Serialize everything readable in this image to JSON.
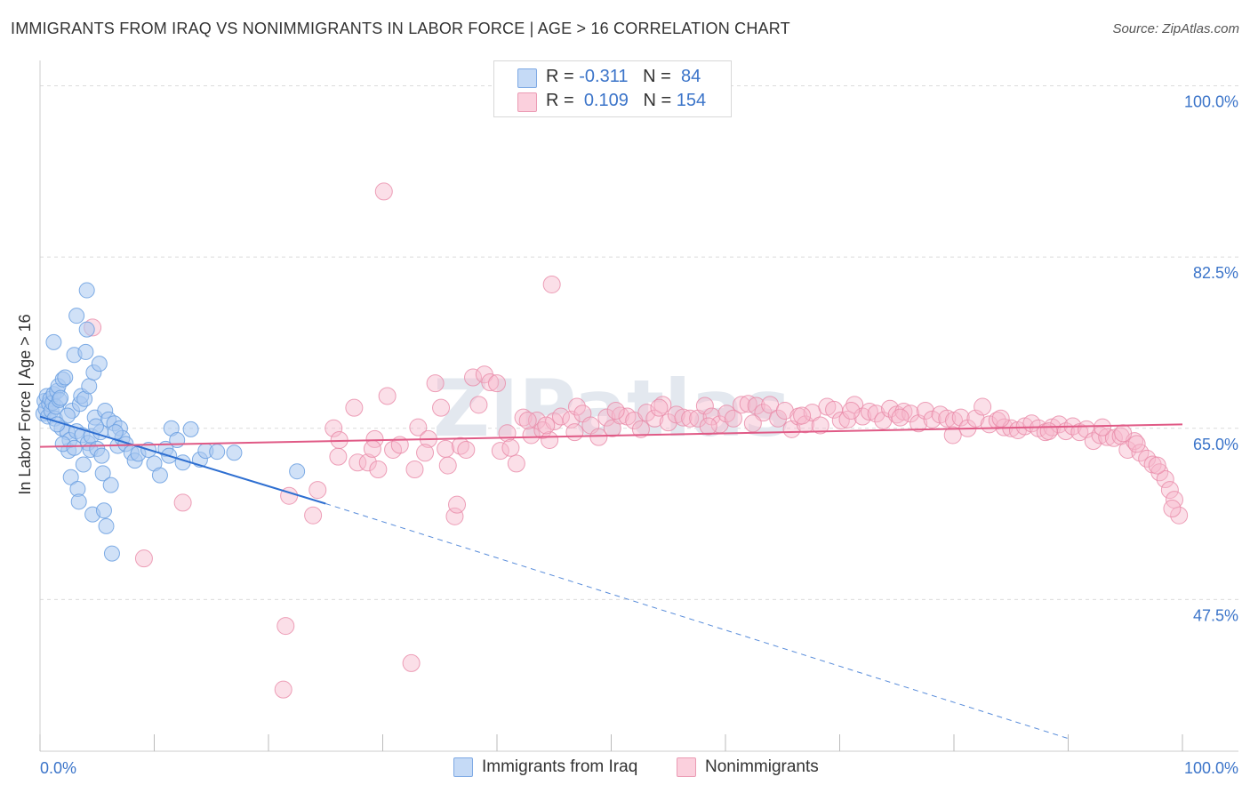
{
  "header": {
    "title": "IMMIGRANTS FROM IRAQ VS NONIMMIGRANTS IN LABOR FORCE | AGE > 16 CORRELATION CHART",
    "source": "Source: ZipAtlas.com"
  },
  "watermark": "ZIPatlas",
  "legend_stats": {
    "r_label": "R =",
    "n_label": "N =",
    "series1": {
      "r": "-0.311",
      "n": "84"
    },
    "series2": {
      "r": "0.109",
      "n": "154"
    }
  },
  "colors": {
    "blue_fill": "#a9c8f0",
    "blue_stroke": "#6a9fe0",
    "blue_line": "#2e6fd1",
    "pink_fill": "#f7b8cb",
    "pink_stroke": "#e98aa8",
    "pink_line": "#e05a86",
    "tick_label": "#3b74c9"
  },
  "chart_data": {
    "type": "scatter",
    "title": "IMMIGRANTS FROM IRAQ VS NONIMMIGRANTS IN LABOR FORCE | AGE > 16 CORRELATION CHART",
    "xlabel": "",
    "ylabel": "In Labor Force | Age > 16",
    "xlim": [
      0,
      100
    ],
    "ylim": [
      32,
      101.5
    ],
    "x_tick_labels": [
      "0.0%",
      "100.0%"
    ],
    "y_ticks": [
      47.5,
      65.0,
      82.5,
      100.0
    ],
    "y_tick_labels": [
      "47.5%",
      "65.0%",
      "82.5%",
      "100.0%"
    ],
    "grid": "horizontal dashed",
    "legend_position": "top-center and bottom",
    "series": [
      {
        "name": "Immigrants from Iraq",
        "color": "#a9c8f0",
        "trend": {
          "x": [
            0,
            25
          ],
          "y": [
            66.2,
            57.3
          ],
          "dashed_extension_to": [
            90,
            33.3
          ]
        },
        "points": [
          [
            0.3,
            66.5
          ],
          [
            0.4,
            67.8
          ],
          [
            0.5,
            67.0
          ],
          [
            0.6,
            68.3
          ],
          [
            0.7,
            66.2
          ],
          [
            0.8,
            67.5
          ],
          [
            0.9,
            68.0
          ],
          [
            1.0,
            66.8
          ],
          [
            1.1,
            67.6
          ],
          [
            1.2,
            68.5
          ],
          [
            1.3,
            66.0
          ],
          [
            1.4,
            67.2
          ],
          [
            1.5,
            68.8
          ],
          [
            1.6,
            69.3
          ],
          [
            1.7,
            67.9
          ],
          [
            1.8,
            68.1
          ],
          [
            1.2,
            73.8
          ],
          [
            1.9,
            65.0
          ],
          [
            2.0,
            70.0
          ],
          [
            2.2,
            70.2
          ],
          [
            2.4,
            64.6
          ],
          [
            2.5,
            62.7
          ],
          [
            2.6,
            63.8
          ],
          [
            2.7,
            60.0
          ],
          [
            2.8,
            66.8
          ],
          [
            3.0,
            72.5
          ],
          [
            3.2,
            64.7
          ],
          [
            3.3,
            58.8
          ],
          [
            3.4,
            57.5
          ],
          [
            3.5,
            67.5
          ],
          [
            3.6,
            68.3
          ],
          [
            3.7,
            64.3
          ],
          [
            3.8,
            61.3
          ],
          [
            3.9,
            68.0
          ],
          [
            4.0,
            72.8
          ],
          [
            4.1,
            75.1
          ],
          [
            4.2,
            63.5
          ],
          [
            4.3,
            69.3
          ],
          [
            4.4,
            62.8
          ],
          [
            4.5,
            64.2
          ],
          [
            4.6,
            56.2
          ],
          [
            4.7,
            70.7
          ],
          [
            4.8,
            66.1
          ],
          [
            5.0,
            62.9
          ],
          [
            5.2,
            71.6
          ],
          [
            5.3,
            64.6
          ],
          [
            5.4,
            62.2
          ],
          [
            5.5,
            60.4
          ],
          [
            5.6,
            56.6
          ],
          [
            5.7,
            66.8
          ],
          [
            5.8,
            55.0
          ],
          [
            6.0,
            65.9
          ],
          [
            6.2,
            59.2
          ],
          [
            6.3,
            52.2
          ],
          [
            6.5,
            65.5
          ],
          [
            6.8,
            63.2
          ],
          [
            7.0,
            65.0
          ],
          [
            7.2,
            64.0
          ],
          [
            7.5,
            63.4
          ],
          [
            8.0,
            62.5
          ],
          [
            8.3,
            61.7
          ],
          [
            8.6,
            62.4
          ],
          [
            9.5,
            62.8
          ],
          [
            10.0,
            61.4
          ],
          [
            10.5,
            60.2
          ],
          [
            11.0,
            62.9
          ],
          [
            11.3,
            62.2
          ],
          [
            11.5,
            65.0
          ],
          [
            12.0,
            63.8
          ],
          [
            12.5,
            61.5
          ],
          [
            13.2,
            64.9
          ],
          [
            14.0,
            61.8
          ],
          [
            14.5,
            62.7
          ],
          [
            15.5,
            62.6
          ],
          [
            17.0,
            62.5
          ],
          [
            22.5,
            60.6
          ],
          [
            4.1,
            79.1
          ],
          [
            3.2,
            76.5
          ],
          [
            2.4,
            66.3
          ],
          [
            1.5,
            65.4
          ],
          [
            2.0,
            63.4
          ],
          [
            3.0,
            63.0
          ],
          [
            4.9,
            65.2
          ],
          [
            6.6,
            64.6
          ]
        ]
      },
      {
        "name": "Nonimmigrants",
        "color": "#f7b8cb",
        "trend": {
          "x": [
            0,
            100
          ],
          "y": [
            63.1,
            65.4
          ]
        },
        "points": [
          [
            4.6,
            75.3
          ],
          [
            9.1,
            51.7
          ],
          [
            12.5,
            57.4
          ],
          [
            21.5,
            44.8
          ],
          [
            21.3,
            38.3
          ],
          [
            21.8,
            58.1
          ],
          [
            23.9,
            56.1
          ],
          [
            24.3,
            58.7
          ],
          [
            25.7,
            65.0
          ],
          [
            26.1,
            62.1
          ],
          [
            26.2,
            63.8
          ],
          [
            27.5,
            67.1
          ],
          [
            27.8,
            61.5
          ],
          [
            28.7,
            61.5
          ],
          [
            29.3,
            63.9
          ],
          [
            29.6,
            60.8
          ],
          [
            30.4,
            68.3
          ],
          [
            30.1,
            89.2
          ],
          [
            30.9,
            62.8
          ],
          [
            31.5,
            63.3
          ],
          [
            32.8,
            60.8
          ],
          [
            32.5,
            41.0
          ],
          [
            33.1,
            65.1
          ],
          [
            34.0,
            63.9
          ],
          [
            34.6,
            69.6
          ],
          [
            35.1,
            67.1
          ],
          [
            35.5,
            62.9
          ],
          [
            35.7,
            61.2
          ],
          [
            36.3,
            56.0
          ],
          [
            36.5,
            57.2
          ],
          [
            36.8,
            63.2
          ],
          [
            37.9,
            70.2
          ],
          [
            38.4,
            67.4
          ],
          [
            38.9,
            70.5
          ],
          [
            39.4,
            69.7
          ],
          [
            40.0,
            69.6
          ],
          [
            40.3,
            62.7
          ],
          [
            40.9,
            64.5
          ],
          [
            41.7,
            61.4
          ],
          [
            42.3,
            66.1
          ],
          [
            43.0,
            64.3
          ],
          [
            43.5,
            65.8
          ],
          [
            44.0,
            64.8
          ],
          [
            44.6,
            63.8
          ],
          [
            45.0,
            65.7
          ],
          [
            45.6,
            66.2
          ],
          [
            46.5,
            65.9
          ],
          [
            47.0,
            67.2
          ],
          [
            47.5,
            66.5
          ],
          [
            48.2,
            65.3
          ],
          [
            48.9,
            64.1
          ],
          [
            49.6,
            66.1
          ],
          [
            50.1,
            65.0
          ],
          [
            50.8,
            66.3
          ],
          [
            51.4,
            66.2
          ],
          [
            52.0,
            65.8
          ],
          [
            52.6,
            64.9
          ],
          [
            53.1,
            66.6
          ],
          [
            53.8,
            66.0
          ],
          [
            54.5,
            67.4
          ],
          [
            55.0,
            65.6
          ],
          [
            55.7,
            66.4
          ],
          [
            56.3,
            66.1
          ],
          [
            56.9,
            66.0
          ],
          [
            57.6,
            66.0
          ],
          [
            58.2,
            67.3
          ],
          [
            58.8,
            66.2
          ],
          [
            59.5,
            65.4
          ],
          [
            60.1,
            66.5
          ],
          [
            60.7,
            66.0
          ],
          [
            61.4,
            67.4
          ],
          [
            62.0,
            67.5
          ],
          [
            62.7,
            67.3
          ],
          [
            63.3,
            66.6
          ],
          [
            63.9,
            67.4
          ],
          [
            64.6,
            66.0
          ],
          [
            65.2,
            66.8
          ],
          [
            65.8,
            64.9
          ],
          [
            66.4,
            66.2
          ],
          [
            67.0,
            65.4
          ],
          [
            67.6,
            66.6
          ],
          [
            68.3,
            65.3
          ],
          [
            68.9,
            67.2
          ],
          [
            69.5,
            66.9
          ],
          [
            70.1,
            65.8
          ],
          [
            70.7,
            65.9
          ],
          [
            71.3,
            67.4
          ],
          [
            72.0,
            66.2
          ],
          [
            72.6,
            66.7
          ],
          [
            73.2,
            66.5
          ],
          [
            73.8,
            65.8
          ],
          [
            74.4,
            67.0
          ],
          [
            75.0,
            66.4
          ],
          [
            75.6,
            66.7
          ],
          [
            76.2,
            66.5
          ],
          [
            76.9,
            65.5
          ],
          [
            77.5,
            66.8
          ],
          [
            78.1,
            65.9
          ],
          [
            78.8,
            66.4
          ],
          [
            79.4,
            66.0
          ],
          [
            80.0,
            65.8
          ],
          [
            80.6,
            66.1
          ],
          [
            81.2,
            65.0
          ],
          [
            81.9,
            66.0
          ],
          [
            82.5,
            67.2
          ],
          [
            83.1,
            65.4
          ],
          [
            83.8,
            65.8
          ],
          [
            84.4,
            65.1
          ],
          [
            85.0,
            65.0
          ],
          [
            85.6,
            64.8
          ],
          [
            86.2,
            65.2
          ],
          [
            86.8,
            65.5
          ],
          [
            87.4,
            65.0
          ],
          [
            88.0,
            64.6
          ],
          [
            88.6,
            65.1
          ],
          [
            89.2,
            65.4
          ],
          [
            89.8,
            64.7
          ],
          [
            90.4,
            65.2
          ],
          [
            91.0,
            64.6
          ],
          [
            91.6,
            64.9
          ],
          [
            92.2,
            63.7
          ],
          [
            92.8,
            64.3
          ],
          [
            93.4,
            64.1
          ],
          [
            94.0,
            64.0
          ],
          [
            94.6,
            64.2
          ],
          [
            95.2,
            62.8
          ],
          [
            95.8,
            63.7
          ],
          [
            96.3,
            62.5
          ],
          [
            96.9,
            61.9
          ],
          [
            97.4,
            61.3
          ],
          [
            98.0,
            60.5
          ],
          [
            98.5,
            59.8
          ],
          [
            98.9,
            58.7
          ],
          [
            99.3,
            57.7
          ],
          [
            99.7,
            56.1
          ],
          [
            99.1,
            56.8
          ],
          [
            97.8,
            61.2
          ],
          [
            96.0,
            63.4
          ],
          [
            94.8,
            64.5
          ],
          [
            93.0,
            65.1
          ],
          [
            88.3,
            64.7
          ],
          [
            84.1,
            66.0
          ],
          [
            79.9,
            64.3
          ],
          [
            75.3,
            66.1
          ],
          [
            71.0,
            66.8
          ],
          [
            66.7,
            66.3
          ],
          [
            62.4,
            65.5
          ],
          [
            58.5,
            65.2
          ],
          [
            54.2,
            67.1
          ],
          [
            50.4,
            66.8
          ],
          [
            46.8,
            64.6
          ],
          [
            44.3,
            65.3
          ],
          [
            42.7,
            65.8
          ],
          [
            41.2,
            63.0
          ],
          [
            37.3,
            62.8
          ],
          [
            33.7,
            62.5
          ],
          [
            29.1,
            62.9
          ],
          [
            44.8,
            79.7
          ]
        ]
      }
    ]
  },
  "bottom_legend": {
    "series1_label": "Immigrants from Iraq",
    "series2_label": "Nonimmigrants"
  }
}
